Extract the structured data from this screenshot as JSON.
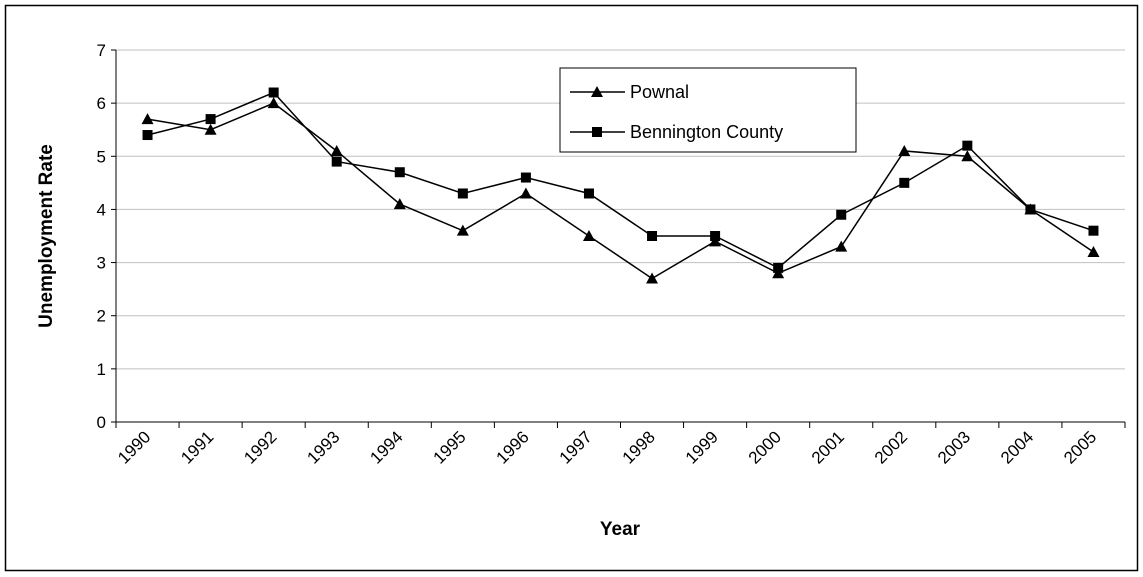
{
  "chart_data": {
    "type": "line",
    "x_label": "Year",
    "y_label": "Unemployment Rate",
    "categories": [
      "1990",
      "1991",
      "1992",
      "1993",
      "1994",
      "1995",
      "1996",
      "1997",
      "1998",
      "1999",
      "2000",
      "2001",
      "2002",
      "2003",
      "2004",
      "2005"
    ],
    "series": [
      {
        "name": "Pownal",
        "color": "#000000",
        "marker": "triangle",
        "values": [
          5.7,
          5.5,
          6.0,
          5.1,
          4.1,
          3.6,
          4.3,
          3.5,
          2.7,
          3.4,
          2.8,
          3.3,
          5.1,
          5.0,
          4.0,
          3.2
        ]
      },
      {
        "name": "Bennington County",
        "color": "#000000",
        "marker": "square",
        "values": [
          5.4,
          5.7,
          6.2,
          4.9,
          4.7,
          4.3,
          4.6,
          4.3,
          3.5,
          3.5,
          2.9,
          3.9,
          4.5,
          5.2,
          4.0,
          3.6
        ]
      }
    ],
    "ylim": [
      0,
      7
    ],
    "yticks": [
      0,
      1,
      2,
      3,
      4,
      5,
      6,
      7
    ],
    "grid": true,
    "legend": "top"
  }
}
